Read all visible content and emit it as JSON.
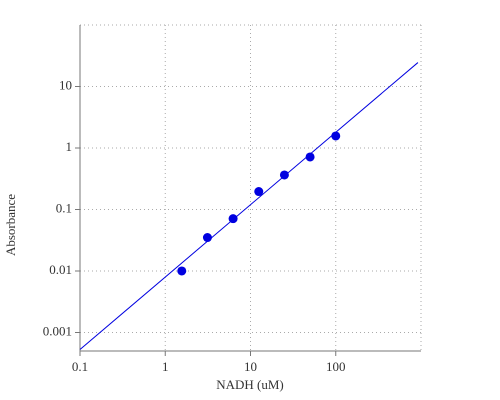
{
  "chart_data": {
    "type": "scatter",
    "x_label": "NADH (uM)",
    "y_label": "Absorbance",
    "x": [
      1.5625,
      3.125,
      6.25,
      12.5,
      25,
      50,
      100
    ],
    "values": [
      0.01,
      0.035,
      0.071,
      0.196,
      0.364,
      0.714,
      1.57
    ],
    "color": "#0000e0",
    "line": {
      "x": [
        0.1,
        920
      ],
      "values": [
        0.00053,
        24.5
      ],
      "color": "#0000e0"
    },
    "xlim": [
      0.1,
      1000
    ],
    "ylim": [
      0.0005,
      100
    ],
    "xticks": [
      0.1,
      1,
      10,
      100
    ],
    "yticks": [
      0.001,
      0.01,
      0.1,
      1,
      10
    ],
    "log_x": true,
    "log_y": true,
    "grid": true
  }
}
